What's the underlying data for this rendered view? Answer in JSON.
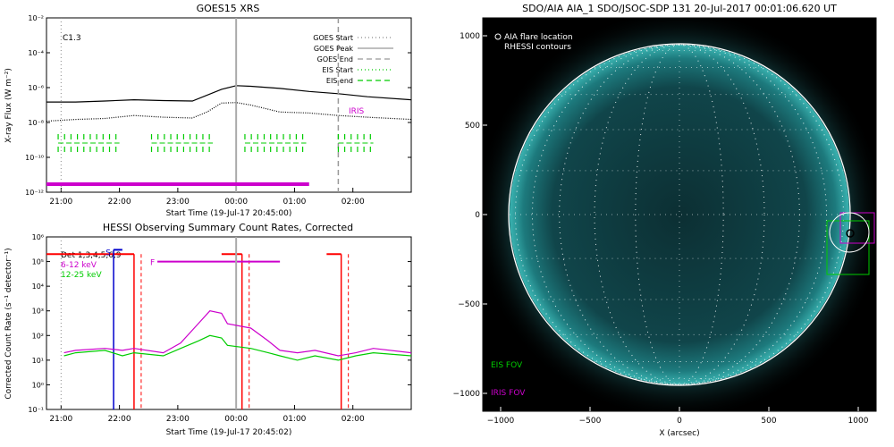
{
  "goes": {
    "title": "GOES15 XRS",
    "class_label": "C1.3",
    "ylabel": "X-ray Flux (W m⁻²)",
    "xlabel": "Start Time (19-Jul-17 20:45:00)",
    "iris_label": "IRIS",
    "yticks": [
      "10⁻²",
      "10⁻⁴",
      "10⁻⁶",
      "10⁻⁸",
      "10⁻¹⁰",
      "10⁻¹²"
    ],
    "xticks": [
      "21:00",
      "22:00",
      "23:00",
      "00:00",
      "01:00",
      "02:00"
    ],
    "legend": [
      {
        "label": "GOES Start",
        "color": "#888888",
        "dash": "1,3"
      },
      {
        "label": "GOES Peak",
        "color": "#999999",
        "dash": ""
      },
      {
        "label": "GOES End",
        "color": "#999999",
        "dash": "6,4"
      },
      {
        "label": "EIS Start",
        "color": "#00cc00",
        "dash": "1,3"
      },
      {
        "label": "EIS end",
        "color": "#00cc00",
        "dash": "6,4"
      }
    ]
  },
  "hessi": {
    "title": "HESSI Observing Summary Count Rates, Corrected",
    "ylabel": "Corrected Count Rate (s⁻¹ detector⁻¹)",
    "xlabel": "Start Time (19-Jul-17 20:45:02)",
    "yticks": [
      "10⁶",
      "10⁵",
      "10⁴",
      "10³",
      "10²",
      "10¹",
      "10⁰",
      "10⁻¹"
    ],
    "xticks": [
      "21:00",
      "22:00",
      "23:00",
      "00:00",
      "01:00",
      "02:00"
    ],
    "legend": [
      {
        "label": "Det 1,3,4,5,6,9",
        "color": "#000000"
      },
      {
        "label": "6-12 keV",
        "color": "#cc00cc"
      },
      {
        "label": "12-25 keV",
        "color": "#00cc00"
      }
    ],
    "flags": [
      "S",
      "F"
    ]
  },
  "aia": {
    "title": "SDO/AIA AIA_1 SDO/JSOC-SDP 131 20-Jul-2017 00:01:06.620 UT",
    "legend_loc": "AIA flare location",
    "legend_rhessi": "RHESSI contours",
    "eis_fov": "EIS FOV",
    "iris_fov": "IRIS FOV",
    "xlabel": "X (arcsec)",
    "xticks": [
      "−1000",
      "−500",
      "0",
      "500",
      "1000"
    ],
    "yticks": [
      "1000",
      "500",
      "0",
      "−500",
      "−1000"
    ]
  },
  "chart_data": [
    {
      "type": "line",
      "title": "GOES15 XRS",
      "xlabel": "Start Time (19-Jul-17 20:45:00)",
      "ylabel": "X-ray Flux (W m-2)",
      "yscale": "log",
      "ylim": [
        1e-12,
        0.01
      ],
      "xlim_hours_from_start": [
        0,
        6.25
      ],
      "series": [
        {
          "x": [
            0.0,
            0.5,
            1.0,
            1.5,
            2.0,
            2.5,
            3.0,
            3.25,
            3.5,
            4.0,
            4.5,
            5.0,
            5.5,
            6.25
          ],
          "y": [
            1.5e-07,
            1.5e-07,
            1.7e-07,
            2e-07,
            1.8e-07,
            1.7e-07,
            8e-07,
            1.3e-06,
            1.2e-06,
            9e-07,
            6e-07,
            4.5e-07,
            3e-07,
            2e-07
          ]
        },
        {
          "x": [
            0.0,
            0.5,
            1.0,
            1.5,
            2.0,
            2.5,
            2.75,
            3.0,
            3.25,
            3.5,
            4.0,
            4.5,
            5.0,
            5.5,
            6.25
          ],
          "y": [
            1.2e-08,
            1.5e-08,
            1.7e-08,
            2.5e-08,
            2e-08,
            1.8e-08,
            4e-08,
            1.3e-07,
            1.4e-07,
            1e-07,
            4e-08,
            3.5e-08,
            2.5e-08,
            2e-08,
            1.5e-08
          ]
        }
      ],
      "markers": {
        "class_line_h": 0.25,
        "peak_line_h": 3.25,
        "end_line_h": 5.0
      },
      "eis_blocks_h": [
        [
          0.2,
          1.25
        ],
        [
          1.8,
          2.85
        ],
        [
          3.4,
          4.45
        ],
        [
          5.0,
          5.6
        ]
      ],
      "iris_range_h": [
        0.0,
        4.5
      ]
    },
    {
      "type": "line",
      "title": "HESSI Observing Summary Count Rates, Corrected",
      "xlabel": "Start Time (19-Jul-17 20:45:02)",
      "ylabel": "Corrected Count Rate (s-1 detector-1)",
      "yscale": "log",
      "ylim": [
        0.1,
        1000000.0
      ],
      "series": [
        {
          "name": "6-12 keV",
          "x": [
            0.3,
            0.5,
            1.0,
            1.3,
            1.5,
            2.0,
            2.3,
            2.6,
            2.8,
            3.0,
            3.1,
            3.5,
            3.8,
            4.0,
            4.3,
            4.6,
            5.0,
            5.3,
            5.6,
            6.25
          ],
          "y": [
            20,
            25,
            30,
            25,
            30,
            20,
            50,
            300,
            1000,
            800,
            300,
            200,
            60,
            25,
            20,
            25,
            15,
            20,
            30,
            20
          ]
        },
        {
          "name": "12-25 keV",
          "x": [
            0.3,
            0.5,
            1.0,
            1.3,
            1.5,
            2.0,
            2.3,
            2.6,
            2.8,
            3.0,
            3.1,
            3.5,
            3.8,
            4.0,
            4.3,
            4.6,
            5.0,
            5.3,
            5.6,
            6.25
          ],
          "y": [
            15,
            20,
            25,
            15,
            20,
            15,
            30,
            60,
            100,
            80,
            40,
            30,
            20,
            15,
            10,
            15,
            10,
            15,
            20,
            15
          ]
        }
      ],
      "attenuator_high_h": [
        [
          0.0,
          1.5
        ],
        [
          3.0,
          3.35
        ],
        [
          4.8,
          5.05
        ]
      ],
      "magenta_high_h": [
        [
          1.9,
          4.0
        ]
      ],
      "saa_h": [
        [
          1.15,
          1.3
        ]
      ]
    }
  ]
}
